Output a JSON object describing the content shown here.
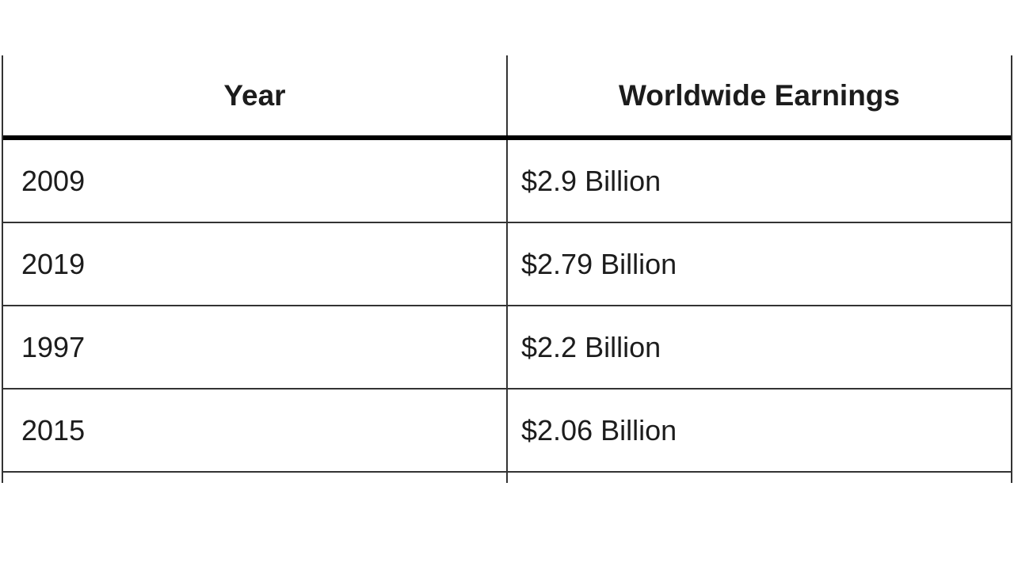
{
  "table": {
    "headers": [
      {
        "label": "Year"
      },
      {
        "label": "Worldwide Earnings"
      }
    ],
    "rows": [
      {
        "year": "2009",
        "earnings": "$2.9 Billion"
      },
      {
        "year": "2019",
        "earnings": "$2.79 Billion"
      },
      {
        "year": "1997",
        "earnings": "$2.2 Billion"
      },
      {
        "year": "2015",
        "earnings": "$2.06 Billion"
      }
    ]
  },
  "chart_data": {
    "type": "table",
    "columns": [
      "Year",
      "Worldwide Earnings"
    ],
    "rows": [
      [
        "2009",
        "$2.9 Billion"
      ],
      [
        "2019",
        "$2.79 Billion"
      ],
      [
        "1997",
        "$2.2 Billion"
      ],
      [
        "2015",
        "$2.06 Billion"
      ]
    ],
    "title": "",
    "notes": "fifth row cut off at bottom edge of screenshot"
  },
  "colors": {
    "background": "#ffffff",
    "text": "#1c1c1c",
    "border_thin": "#333333",
    "border_thick": "#000000"
  }
}
